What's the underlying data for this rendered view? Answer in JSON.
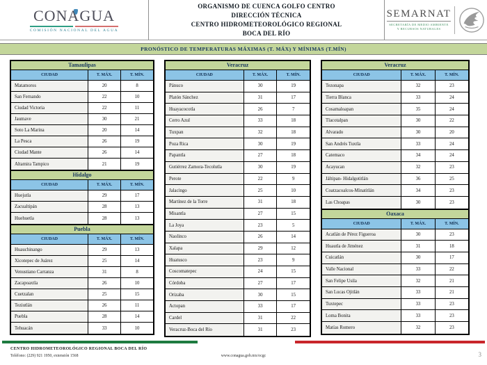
{
  "header": {
    "conagua": {
      "wordmark": "CONAGUA",
      "subtitle": "COMISIÓN NACIONAL DEL AGUA"
    },
    "center_lines": [
      "ORGANISMO DE CUENCA GOLFO CENTRO",
      "DIRECCIÓN TÉCNICA",
      "CENTRO HIDROMETEOROLÓGICO REGIONAL",
      "BOCA DEL RÍO"
    ],
    "semarnat": {
      "wordmark": "SEMARNAT",
      "subtitle_line1": "SECRETARÍA DE MEDIO AMBIENTE",
      "subtitle_line2": "Y RECURSOS NATURALES"
    }
  },
  "title_bar": {
    "text": "PRONÓSTICO DE TEMPERATURAS MÁXIMAS (T. MÁX) Y MÍNIMAS (T.MÍN)"
  },
  "columns_header": {
    "ciudad": "CIUDAD",
    "tmax": "T. MÁX.",
    "tmin": "T. MÍN."
  },
  "tables": {
    "tamaulipas": {
      "state": "Tamaulipas",
      "rows": [
        [
          "Matamoros",
          20,
          8
        ],
        [
          "San Fernando",
          22,
          10
        ],
        [
          "Ciudad Victoria",
          22,
          11
        ],
        [
          "Jaumave",
          30,
          21
        ],
        [
          "Soto La Marina",
          20,
          14
        ],
        [
          "La Pesca",
          26,
          19
        ],
        [
          "Ciudad Mante",
          26,
          14
        ],
        [
          "Altamira Tampico",
          21,
          19
        ]
      ]
    },
    "hidalgo": {
      "state": "Hidalgo",
      "rows": [
        [
          "Huejutla",
          29,
          17
        ],
        [
          "Zacualtipán",
          28,
          13
        ],
        [
          "Huehuetla",
          28,
          13
        ]
      ]
    },
    "puebla": {
      "state": "Puebla",
      "rows": [
        [
          "Huauchinango",
          29,
          13
        ],
        [
          "Xicotepec de Juárez",
          25,
          14
        ],
        [
          "Venustiano Carranza",
          31,
          8
        ],
        [
          "Zacapoaxtla",
          26,
          10
        ],
        [
          "Cuetzalan",
          25,
          15
        ],
        [
          "Teziutlán",
          26,
          11
        ],
        [
          "Puebla",
          28,
          14
        ],
        [
          "Tehuacán",
          33,
          10
        ]
      ]
    },
    "veracruz_a": {
      "state": "Veracruz",
      "rows": [
        [
          "Pánuco",
          30,
          19
        ],
        [
          "Platón Sánchez",
          31,
          17
        ],
        [
          "Huayacocotla",
          26,
          7
        ],
        [
          "Cerro Azul",
          33,
          18
        ],
        [
          "Tuxpan",
          32,
          18
        ],
        [
          "Poza Rica",
          30,
          19
        ],
        [
          "Papantla",
          27,
          18
        ],
        [
          "Gutiérrez Zamora-Tecolutla",
          30,
          19
        ],
        [
          "Perote",
          22,
          9
        ],
        [
          "Jalacingo",
          25,
          10
        ],
        [
          "Martínez de la Torre",
          31,
          18
        ],
        [
          "Misantla",
          27,
          15
        ],
        [
          "La Joya",
          23,
          5
        ],
        [
          "Naolinco",
          26,
          14
        ],
        [
          "Xalapa",
          29,
          12
        ],
        [
          "Huatusco",
          23,
          9
        ],
        [
          "Coscomatepec",
          24,
          15
        ],
        [
          "Córdoba",
          27,
          17
        ],
        [
          "Orizaba",
          30,
          15
        ],
        [
          "Actopan",
          33,
          17
        ],
        [
          "Cardel",
          31,
          22
        ],
        [
          "Veracruz-Boca del Río",
          31,
          23
        ]
      ]
    },
    "veracruz_b": {
      "state": "Veracruz",
      "rows": [
        [
          "Tezonapa",
          32,
          23
        ],
        [
          "Tierra Blanca",
          33,
          24
        ],
        [
          "Cosamaloapan",
          35,
          24
        ],
        [
          "Tlacotalpan",
          30,
          22
        ],
        [
          "Alvarado",
          30,
          20
        ],
        [
          "San Andrés Tuxtla",
          33,
          24
        ],
        [
          "Catemaco",
          34,
          24
        ],
        [
          "Acayucan",
          32,
          23
        ],
        [
          "Jáltipan- Hidalgotitlán",
          36,
          25
        ],
        [
          "Coatzacoalcos-Minatitlán",
          34,
          23
        ],
        [
          "Las Choapas",
          30,
          23
        ]
      ]
    },
    "oaxaca": {
      "state": "Oaxaca",
      "rows": [
        [
          "Acatlán de Pérez Figueroa",
          30,
          23
        ],
        [
          "Huautla de Jiménez",
          31,
          18
        ],
        [
          "Cuicatlán",
          30,
          17
        ],
        [
          "Valle Nacional",
          33,
          22
        ],
        [
          "San Felipe Usila",
          32,
          21
        ],
        [
          "San Lucas Ojitlán",
          33,
          21
        ],
        [
          "Tuxtepec",
          33,
          23
        ],
        [
          "Loma Bonita",
          33,
          23
        ],
        [
          "Matías Romero",
          32,
          23
        ]
      ]
    }
  },
  "footer": {
    "org": "CENTRO HIDROMETEOROLÓGICO REGIONAL BOCA DEL RÍO",
    "phone": "Teléfono: (229) 921 1950, extensión 1568",
    "url": "www.conagua.gob.mx/ocgc",
    "page": "3"
  },
  "colors": {
    "state_header_green": "#c3d69b",
    "column_header_blue": "#8cc4e6",
    "navy_text": "#17365d",
    "row_gray": "#f2f2ef",
    "flag_green": "#1e7b40",
    "flag_red": "#c9252b",
    "logo_green": "#2e9e85",
    "logo_red": "#d4706f",
    "logo_teal": "#2f7f92",
    "drop_blue": "#3f87b8"
  }
}
